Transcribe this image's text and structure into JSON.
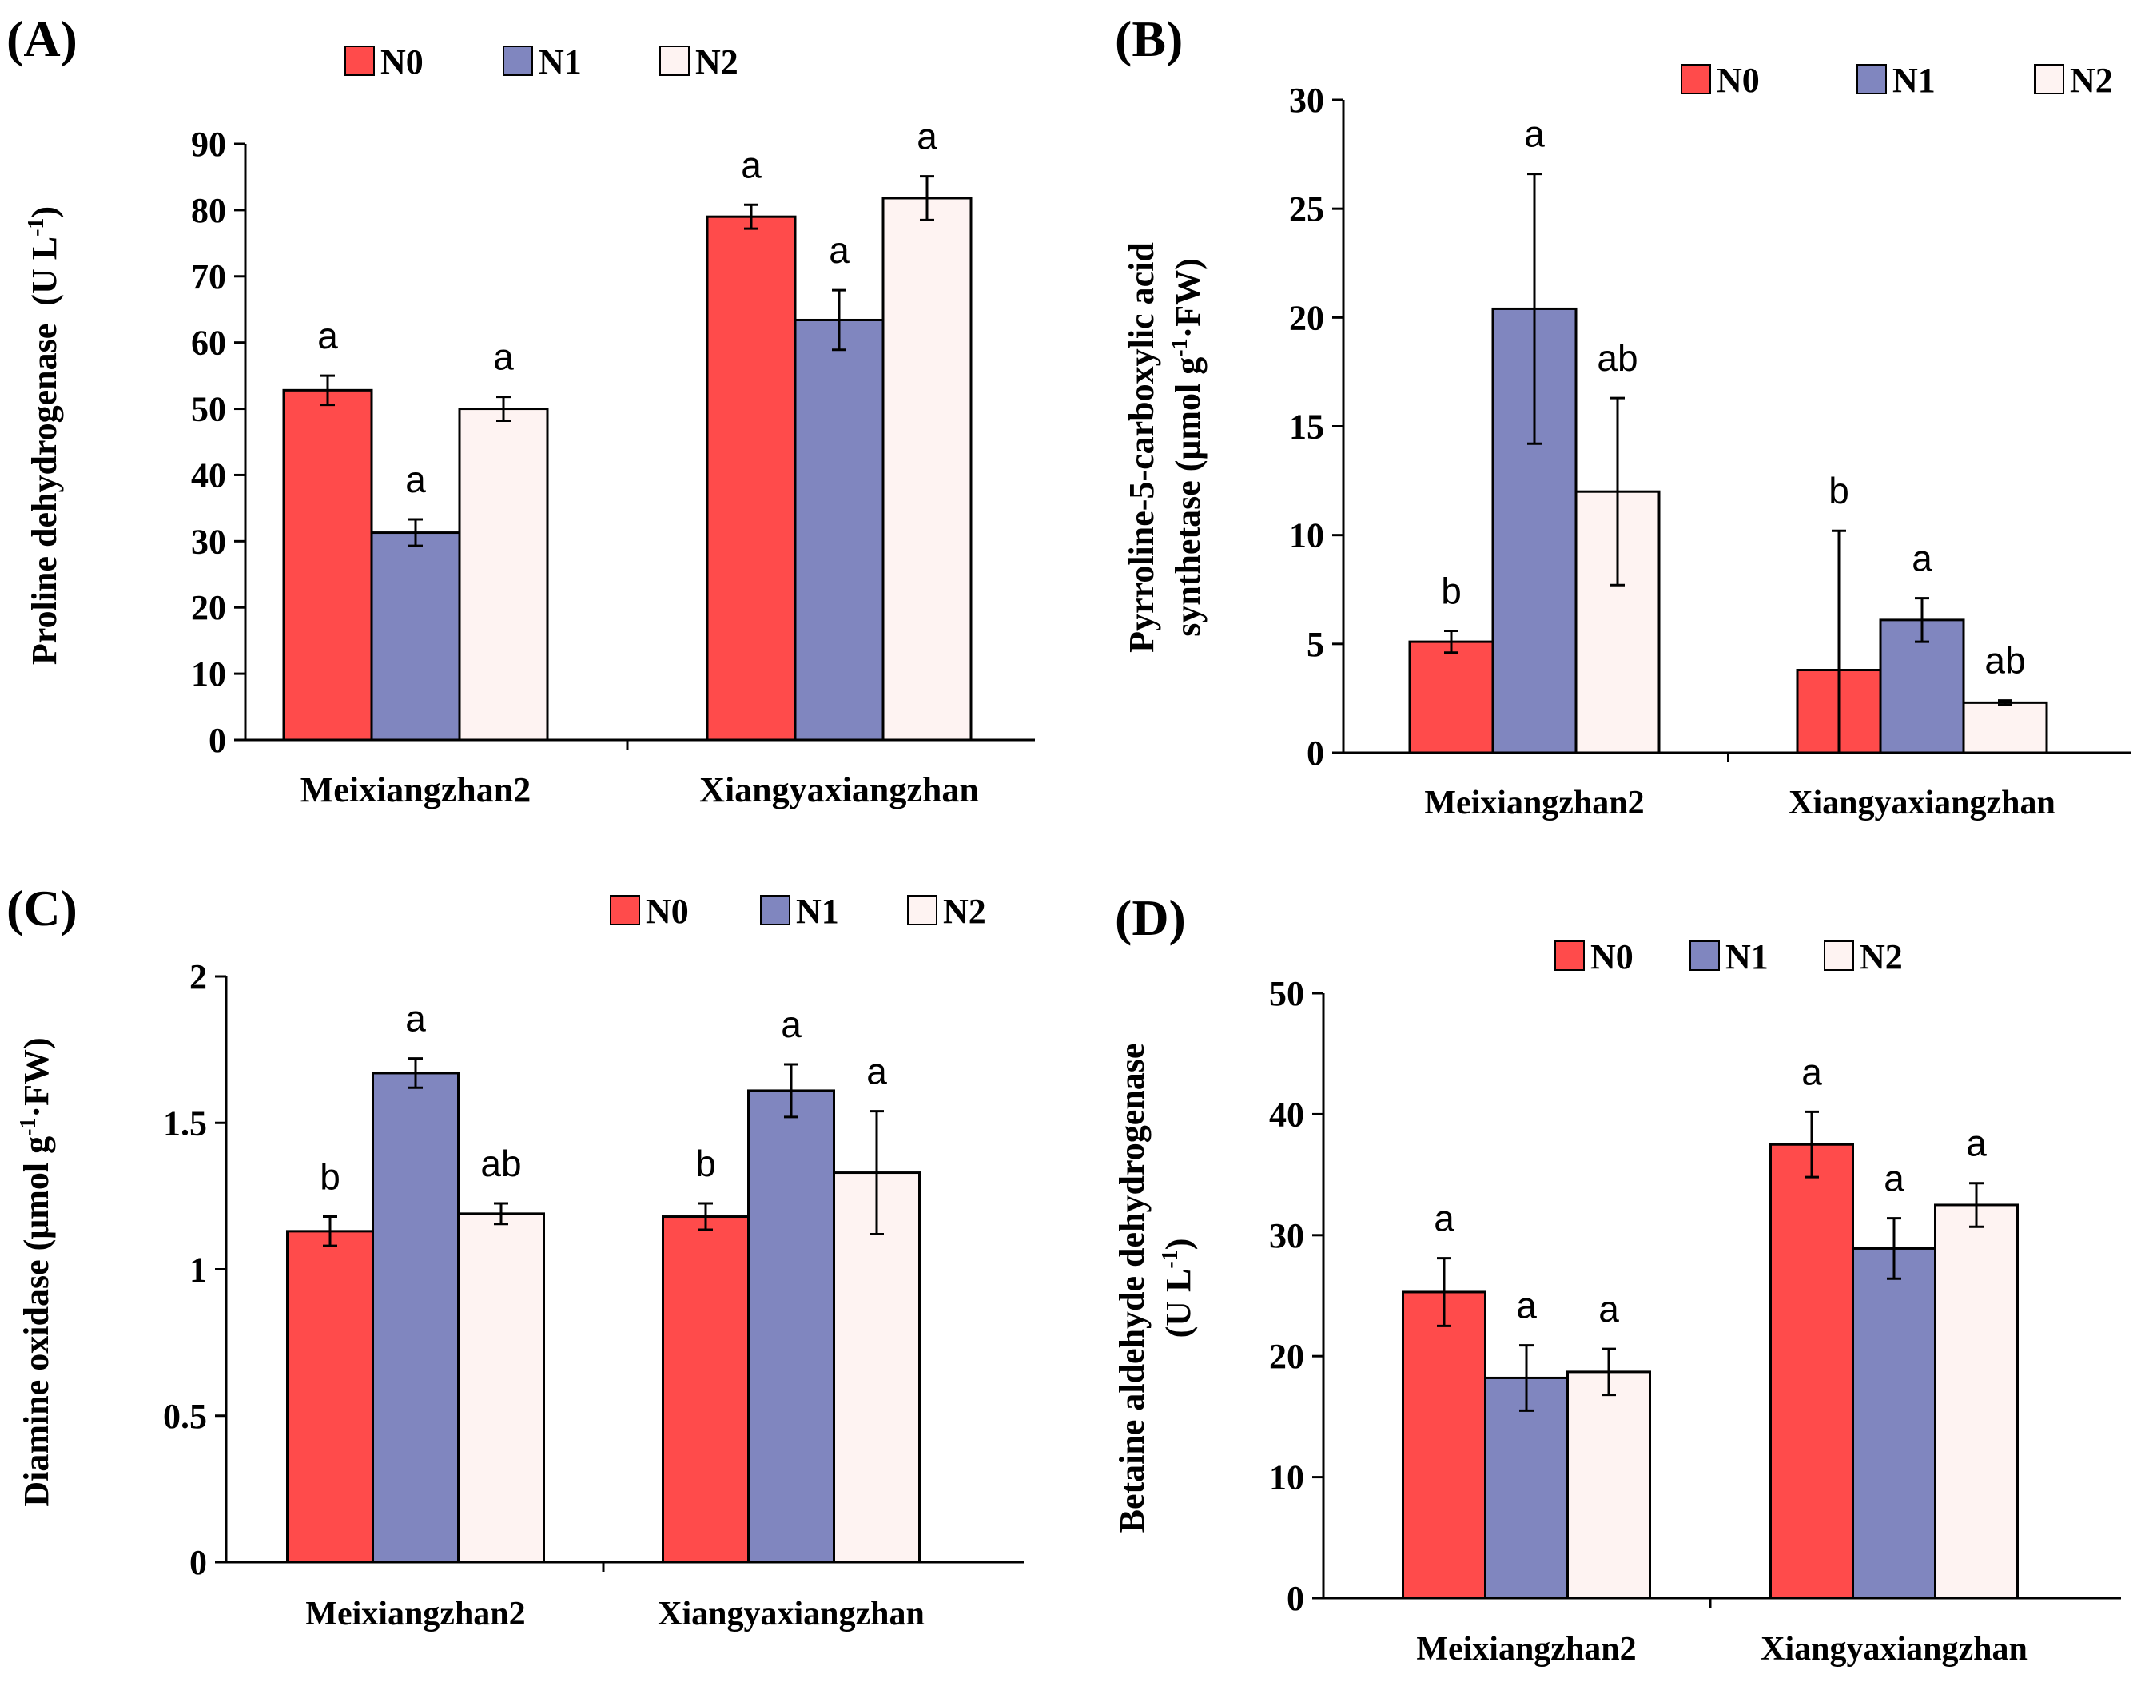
{
  "colors": {
    "N0": "#FF4B4B",
    "N1": "#8086BF",
    "N2": "#FEF3F2"
  },
  "legend_labels": [
    "N0",
    "N1",
    "N2"
  ],
  "chart_data": [
    {
      "type": "bar",
      "panel_label": "(A)",
      "categories": [
        "Meixiangzhan2",
        "Xiangyaxiangzhan"
      ],
      "ylabel_lines": [
        "Proline dehydrogenase  (U L",
        "-1",
        ")"
      ],
      "ylim": [
        0,
        90
      ],
      "yticks": [
        0,
        10,
        20,
        30,
        40,
        50,
        60,
        70,
        80,
        90
      ],
      "ytick_labels": [
        "0",
        "10",
        "20",
        "30",
        "40",
        "50",
        "60",
        "70",
        "80",
        "90"
      ],
      "series": [
        {
          "name": "N0",
          "values": [
            52.8,
            79.0
          ],
          "errors": [
            2.2,
            1.8
          ],
          "letters": [
            "a",
            "a"
          ]
        },
        {
          "name": "N1",
          "values": [
            31.3,
            63.4
          ],
          "errors": [
            2.0,
            4.5
          ],
          "letters": [
            "a",
            "a"
          ]
        },
        {
          "name": "N2",
          "values": [
            50.0,
            81.8
          ],
          "errors": [
            1.8,
            3.3
          ],
          "letters": [
            "a",
            "a"
          ]
        }
      ]
    },
    {
      "type": "bar",
      "panel_label": "(B)",
      "categories": [
        "Meixiangzhan2",
        "Xiangyaxiangzhan"
      ],
      "ylabel_lines": [
        "Pyrroline-5-carboxylic acid",
        "synthetase (μmol g",
        "-1",
        "·FW)"
      ],
      "ylim": [
        0,
        30
      ],
      "yticks": [
        0,
        5,
        10,
        15,
        20,
        25,
        30
      ],
      "ytick_labels": [
        "0",
        "5",
        "10",
        "15",
        "20",
        "25",
        "30"
      ],
      "series": [
        {
          "name": "N0",
          "values": [
            5.1,
            3.8
          ],
          "errors": [
            0.5,
            6.4
          ],
          "letters": [
            "b",
            "b"
          ]
        },
        {
          "name": "N1",
          "values": [
            20.4,
            6.1
          ],
          "errors": [
            6.2,
            1.0
          ],
          "letters": [
            "a",
            "a"
          ]
        },
        {
          "name": "N2",
          "values": [
            12.0,
            2.3
          ],
          "errors": [
            4.3,
            0.1
          ],
          "letters": [
            "ab",
            "ab"
          ]
        }
      ]
    },
    {
      "type": "bar",
      "panel_label": "(C)",
      "categories": [
        "Meixiangzhan2",
        "Xiangyaxiangzhan"
      ],
      "ylabel_lines": [
        "Diamine oxidase (μmol g",
        "-1",
        "·FW)"
      ],
      "ylim": [
        0,
        2
      ],
      "yticks": [
        0,
        0.5,
        1,
        1.5,
        2
      ],
      "ytick_labels": [
        "0",
        "0.5",
        "1",
        "1.5",
        "2"
      ],
      "series": [
        {
          "name": "N0",
          "values": [
            1.13,
            1.18
          ],
          "errors": [
            0.05,
            0.045
          ],
          "letters": [
            "b",
            "b"
          ]
        },
        {
          "name": "N1",
          "values": [
            1.67,
            1.61
          ],
          "errors": [
            0.05,
            0.09
          ],
          "letters": [
            "a",
            "a"
          ]
        },
        {
          "name": "N2",
          "values": [
            1.19,
            1.33
          ],
          "errors": [
            0.035,
            0.21
          ],
          "letters": [
            "ab",
            "a"
          ]
        }
      ]
    },
    {
      "type": "bar",
      "panel_label": "(D)",
      "categories": [
        "Meixiangzhan2",
        "Xiangyaxiangzhan"
      ],
      "ylabel_lines": [
        "Betaine aldehyde dehydrogenase",
        "(U L",
        "-1",
        ")"
      ],
      "ylim": [
        0,
        50
      ],
      "yticks": [
        0,
        10,
        20,
        30,
        40,
        50
      ],
      "ytick_labels": [
        "0",
        "10",
        "20",
        "30",
        "40",
        "50"
      ],
      "series": [
        {
          "name": "N0",
          "values": [
            25.3,
            37.5
          ],
          "errors": [
            2.8,
            2.7
          ],
          "letters": [
            "a",
            "a"
          ]
        },
        {
          "name": "N1",
          "values": [
            18.2,
            28.9
          ],
          "errors": [
            2.7,
            2.5
          ],
          "letters": [
            "a",
            "a"
          ]
        },
        {
          "name": "N2",
          "values": [
            18.7,
            32.5
          ],
          "errors": [
            1.9,
            1.8
          ],
          "letters": [
            "a",
            "a"
          ]
        }
      ]
    }
  ]
}
